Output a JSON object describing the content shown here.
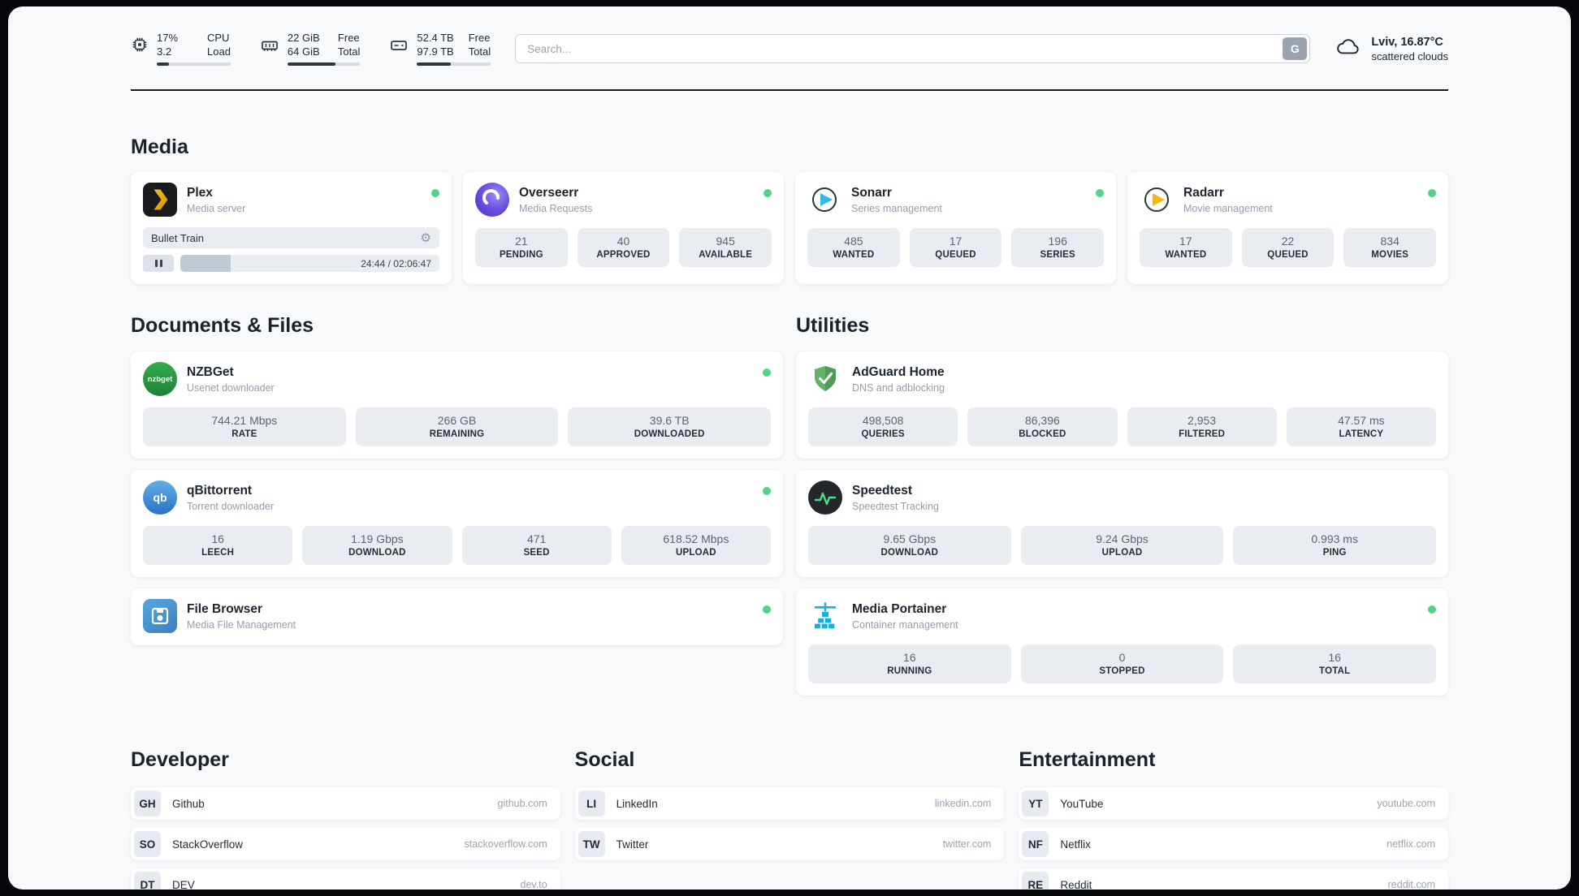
{
  "topbar": {
    "cpu": {
      "usage": "17%",
      "load": "3.2",
      "label_top": "CPU",
      "label_bottom": "Load",
      "progress_pct": 17
    },
    "ram": {
      "free": "22 GiB",
      "total": "64 GiB",
      "label_top": "Free",
      "label_bottom": "Total",
      "progress_pct": 66
    },
    "disk": {
      "free": "52.4 TB",
      "total": "97.9 TB",
      "label_top": "Free",
      "label_bottom": "Total",
      "progress_pct": 46
    },
    "search": {
      "placeholder": "Search...",
      "engine_button": "G"
    },
    "weather": {
      "location": "Lviv, 16.87°C",
      "condition": "scattered clouds"
    }
  },
  "media": {
    "title": "Media",
    "plex": {
      "name": "Plex",
      "subtitle": "Media server",
      "now_playing": "Bullet Train",
      "time": "24:44 / 02:06:47",
      "progress_pct": 19.5
    },
    "overseerr": {
      "name": "Overseerr",
      "subtitle": "Media Requests",
      "stats": [
        {
          "value": "21",
          "label": "PENDING"
        },
        {
          "value": "40",
          "label": "APPROVED"
        },
        {
          "value": "945",
          "label": "AVAILABLE"
        }
      ]
    },
    "sonarr": {
      "name": "Sonarr",
      "subtitle": "Series management",
      "stats": [
        {
          "value": "485",
          "label": "WANTED"
        },
        {
          "value": "17",
          "label": "QUEUED"
        },
        {
          "value": "196",
          "label": "SERIES"
        }
      ]
    },
    "radarr": {
      "name": "Radarr",
      "subtitle": "Movie management",
      "stats": [
        {
          "value": "17",
          "label": "WANTED"
        },
        {
          "value": "22",
          "label": "QUEUED"
        },
        {
          "value": "834",
          "label": "MOVIES"
        }
      ]
    }
  },
  "documents": {
    "title": "Documents & Files",
    "nzbget": {
      "name": "NZBGet",
      "subtitle": "Usenet downloader",
      "icon_text": "nzbget",
      "stats": [
        {
          "value": "744.21 Mbps",
          "label": "RATE"
        },
        {
          "value": "266 GB",
          "label": "REMAINING"
        },
        {
          "value": "39.6 TB",
          "label": "DOWNLOADED"
        }
      ]
    },
    "qbittorrent": {
      "name": "qBittorrent",
      "subtitle": "Torrent downloader",
      "icon_text": "qb",
      "stats": [
        {
          "value": "16",
          "label": "LEECH"
        },
        {
          "value": "1.19 Gbps",
          "label": "DOWNLOAD"
        },
        {
          "value": "471",
          "label": "SEED"
        },
        {
          "value": "618.52 Mbps",
          "label": "UPLOAD"
        }
      ]
    },
    "filebrowser": {
      "name": "File Browser",
      "subtitle": "Media File Management"
    }
  },
  "utilities": {
    "title": "Utilities",
    "adguard": {
      "name": "AdGuard Home",
      "subtitle": "DNS and adblocking",
      "stats": [
        {
          "value": "498,508",
          "label": "QUERIES"
        },
        {
          "value": "86,396",
          "label": "BLOCKED"
        },
        {
          "value": "2,953",
          "label": "FILTERED"
        },
        {
          "value": "47.57 ms",
          "label": "LATENCY"
        }
      ]
    },
    "speedtest": {
      "name": "Speedtest",
      "subtitle": "Speedtest Tracking",
      "stats": [
        {
          "value": "9.65 Gbps",
          "label": "DOWNLOAD"
        },
        {
          "value": "9.24 Gbps",
          "label": "UPLOAD"
        },
        {
          "value": "0.993 ms",
          "label": "PING"
        }
      ]
    },
    "portainer": {
      "name": "Media Portainer",
      "subtitle": "Container management",
      "stats": [
        {
          "value": "16",
          "label": "RUNNING"
        },
        {
          "value": "0",
          "label": "STOPPED"
        },
        {
          "value": "16",
          "label": "TOTAL"
        }
      ]
    }
  },
  "links": {
    "developer": {
      "title": "Developer",
      "items": [
        {
          "abbr": "GH",
          "name": "Github",
          "url": "github.com"
        },
        {
          "abbr": "SO",
          "name": "StackOverflow",
          "url": "stackoverflow.com"
        },
        {
          "abbr": "DT",
          "name": "DEV",
          "url": "dev.to"
        }
      ]
    },
    "social": {
      "title": "Social",
      "items": [
        {
          "abbr": "LI",
          "name": "LinkedIn",
          "url": "linkedin.com"
        },
        {
          "abbr": "TW",
          "name": "Twitter",
          "url": "twitter.com"
        }
      ]
    },
    "entertainment": {
      "title": "Entertainment",
      "items": [
        {
          "abbr": "YT",
          "name": "YouTube",
          "url": "youtube.com"
        },
        {
          "abbr": "NF",
          "name": "Netflix",
          "url": "netflix.com"
        },
        {
          "abbr": "RE",
          "name": "Reddit",
          "url": "reddit.com"
        }
      ]
    }
  },
  "colors": {
    "status_online": "#4fd588",
    "plex_accent": "#e8a00d",
    "sonarr_accent": "#35b8e6",
    "radarr_accent": "#f7b80e",
    "adguard_accent": "#63b168",
    "speedtest_accent": "#49e07f",
    "portainer_accent": "#0fb0e4",
    "nzbget_accent": "#28a745"
  }
}
